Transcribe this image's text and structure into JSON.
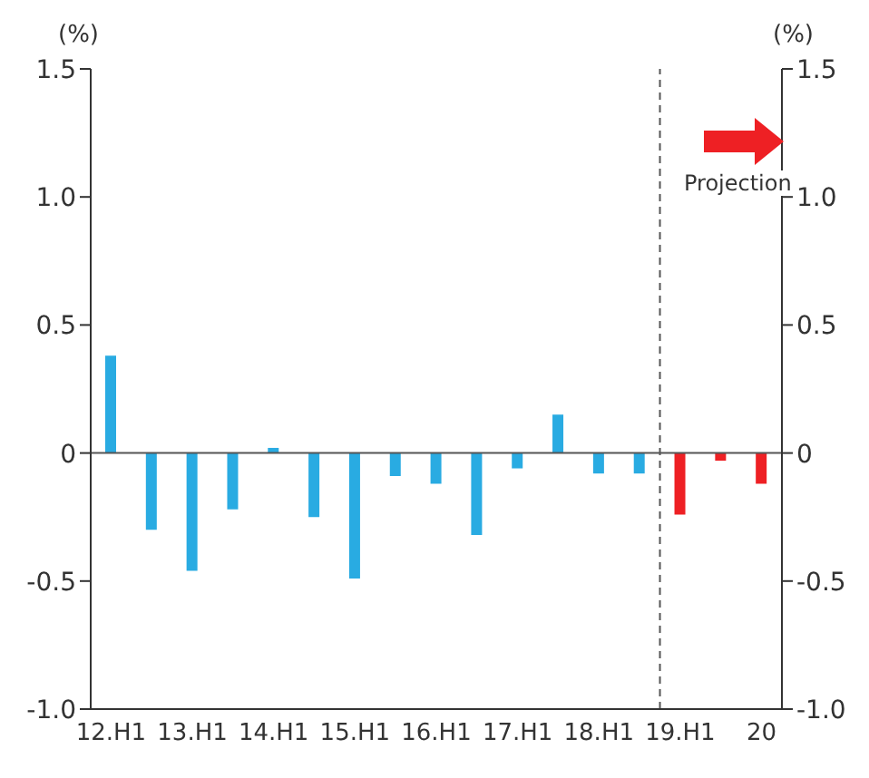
{
  "chart_data": {
    "type": "bar",
    "ylabel": "(%)",
    "y2label": "(%)",
    "categories": [
      "12.H1",
      null,
      "13.H1",
      null,
      "14.H1",
      null,
      "15.H1",
      null,
      "16.H1",
      null,
      "17.H1",
      null,
      "18.H1",
      null,
      "19.H1",
      null,
      "20"
    ],
    "values": [
      0.38,
      -0.3,
      -0.46,
      -0.22,
      0.02,
      -0.25,
      -0.49,
      -0.09,
      -0.12,
      -0.32,
      -0.06,
      0.15,
      -0.08,
      -0.08,
      -0.24,
      -0.03,
      -0.12
    ],
    "colors": [
      "#29abe2",
      "#29abe2",
      "#29abe2",
      "#29abe2",
      "#29abe2",
      "#29abe2",
      "#29abe2",
      "#29abe2",
      "#29abe2",
      "#29abe2",
      "#29abe2",
      "#29abe2",
      "#29abe2",
      "#29abe2",
      "#ee2024",
      "#ee2024",
      "#ee2024"
    ],
    "ylim": [
      -1.0,
      1.5
    ],
    "yticks": [
      {
        "value": -1.0,
        "label": "-1.0"
      },
      {
        "value": -0.5,
        "label": "-0.5"
      },
      0,
      {
        "value": 0.5,
        "label": "0.5"
      },
      {
        "value": 1.0,
        "label": "1.0"
      },
      {
        "value": 1.5,
        "label": "1.5"
      }
    ],
    "y2lim": [
      -1.0,
      1.5
    ],
    "y2ticks": [
      {
        "value": -1.0,
        "label": "-1.0"
      },
      {
        "value": -0.5,
        "label": "-0.5"
      },
      0,
      {
        "value": 0.5,
        "label": "0.5"
      },
      {
        "value": 1.0,
        "label": "1.0"
      },
      {
        "value": 1.5,
        "label": "1.5"
      }
    ],
    "ref_lines": [
      {
        "axis": "x",
        "value": "19.H1",
        "color": "#555555",
        "line_style": "dashed"
      }
    ],
    "annotations": [
      "Projection"
    ]
  }
}
